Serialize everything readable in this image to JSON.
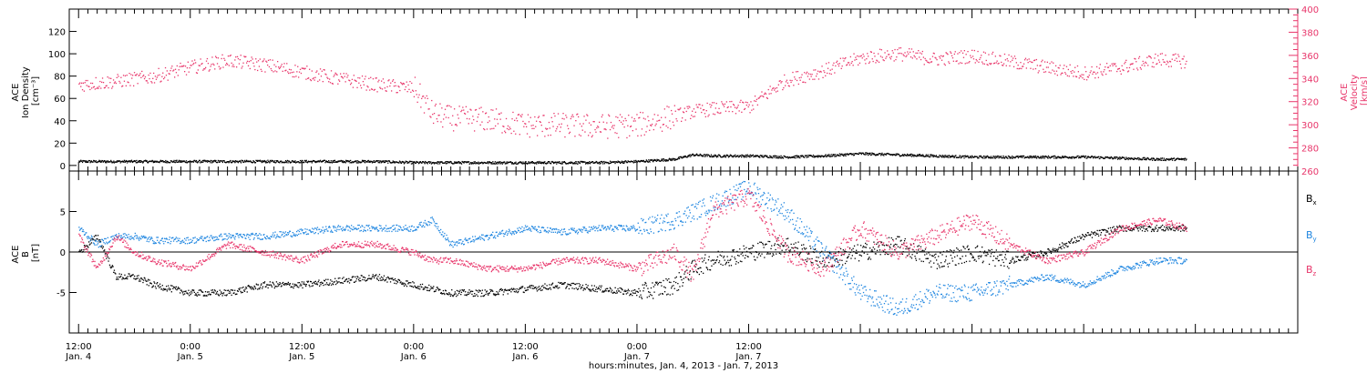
{
  "colors": {
    "density": "#000000",
    "velocity": "#e8356a",
    "bx": "#000000",
    "by": "#1f86e0",
    "bz": "#e8356a",
    "axis": "#000000",
    "background": "#ffffff"
  },
  "chart_data": [
    {
      "type": "scatter",
      "panel": "plasma",
      "x_axis_shared": "time",
      "y_left": {
        "label_lines": [
          "ACE",
          "Ion Density",
          "[cm⁻³]"
        ],
        "ylim": [
          -5,
          140
        ],
        "ticks": [
          0,
          20,
          40,
          60,
          80,
          100,
          120
        ]
      },
      "y_right": {
        "label_lines": [
          "ACE",
          "Velocity",
          "[km/s]"
        ],
        "ylim": [
          260,
          400
        ],
        "ticks": [
          260,
          280,
          300,
          320,
          340,
          360,
          380,
          400
        ]
      },
      "series": [
        {
          "axis": "left",
          "color_key": "density",
          "x_hours": [
            0,
            4,
            8,
            12,
            16,
            20,
            24,
            28,
            32,
            36,
            40,
            44,
            48,
            52,
            56,
            60,
            64,
            66,
            68,
            72,
            76,
            80,
            84,
            88,
            92,
            96,
            100,
            104,
            108,
            112,
            116,
            119
          ],
          "y": [
            4,
            4,
            4,
            4,
            4,
            4,
            4,
            4,
            4,
            3,
            3,
            3,
            3,
            3,
            3,
            4,
            6,
            10,
            9,
            9,
            8,
            9,
            11,
            10,
            9,
            8,
            8,
            8,
            8,
            7,
            6,
            6
          ]
        },
        {
          "axis": "right",
          "color_key": "velocity",
          "x_hours": [
            0,
            4,
            8,
            12,
            16,
            20,
            24,
            28,
            32,
            36,
            38,
            40,
            44,
            48,
            52,
            56,
            60,
            64,
            66,
            68,
            72,
            76,
            80,
            84,
            88,
            92,
            96,
            100,
            104,
            108,
            112,
            116,
            119
          ],
          "y": [
            335,
            338,
            342,
            350,
            356,
            352,
            346,
            340,
            335,
            332,
            310,
            306,
            305,
            300,
            300,
            299,
            300,
            308,
            312,
            314,
            316,
            339,
            347,
            358,
            362,
            357,
            360,
            355,
            350,
            345,
            350,
            357,
            355
          ]
        }
      ]
    },
    {
      "type": "scatter",
      "panel": "magnetic",
      "y_left": {
        "label_lines": [
          "ACE",
          "B",
          "[nT]"
        ],
        "ylim": [
          -10,
          10
        ],
        "ticks": [
          -5,
          0,
          5
        ]
      },
      "legend": [
        "Bₓ",
        "Bᵧ",
        "B_z"
      ],
      "legend_display": [
        [
          "B",
          "x"
        ],
        [
          "B",
          "y"
        ],
        [
          "B",
          "z"
        ]
      ],
      "series": [
        {
          "name_index": 0,
          "color_key": "bx",
          "x_hours": [
            0,
            2,
            4,
            6,
            8,
            12,
            16,
            20,
            24,
            28,
            32,
            36,
            40,
            44,
            48,
            52,
            56,
            60,
            64,
            66,
            68,
            72,
            76,
            80,
            84,
            88,
            92,
            96,
            100,
            104,
            108,
            112,
            116,
            119
          ],
          "y": [
            0,
            2,
            -3,
            -3,
            -4,
            -5,
            -5,
            -4,
            -4,
            -3.5,
            -3,
            -4,
            -5,
            -5,
            -4.5,
            -4,
            -4.5,
            -5,
            -4,
            -2,
            -1,
            0,
            1,
            -1,
            0,
            1,
            -1,
            0,
            -1,
            0,
            2,
            3,
            3,
            3
          ]
        },
        {
          "name_index": 1,
          "color_key": "by",
          "x_hours": [
            0,
            2,
            4,
            6,
            8,
            12,
            16,
            20,
            24,
            28,
            32,
            36,
            38,
            40,
            44,
            48,
            52,
            56,
            60,
            64,
            66,
            68,
            70,
            72,
            76,
            80,
            84,
            88,
            92,
            96,
            100,
            104,
            108,
            112,
            116,
            119
          ],
          "y": [
            3,
            1,
            2,
            2,
            1.5,
            1.5,
            2,
            2,
            2.5,
            3,
            3,
            3,
            4,
            1,
            2,
            3,
            2.5,
            3,
            3,
            4,
            5,
            6,
            7,
            8,
            5,
            0,
            -5,
            -7,
            -5,
            -5,
            -4,
            -3,
            -4,
            -2,
            -1,
            -1
          ]
        },
        {
          "name_index": 2,
          "color_key": "bz",
          "x_hours": [
            0,
            2,
            4,
            6,
            8,
            12,
            16,
            20,
            24,
            28,
            32,
            36,
            38,
            40,
            44,
            48,
            52,
            56,
            60,
            64,
            66,
            68,
            70,
            72,
            76,
            80,
            84,
            88,
            92,
            96,
            100,
            104,
            108,
            112,
            116,
            119
          ],
          "y": [
            2,
            -2,
            2,
            0,
            -1,
            -2,
            1,
            0,
            -1,
            1,
            1,
            0,
            -1,
            -1,
            -2,
            -2,
            -1,
            -1,
            -2,
            0,
            -3,
            5,
            6,
            7,
            0,
            -2,
            3,
            0,
            2,
            4,
            1,
            -1,
            0,
            3,
            4,
            3
          ]
        }
      ],
      "zero_line": true
    }
  ],
  "time_axis": {
    "range_hours": [
      -1,
      131
    ],
    "major_ticks": [
      {
        "h": 0,
        "line1": "12:00",
        "line2": "Jan. 4"
      },
      {
        "h": 12,
        "line1": "0:00",
        "line2": "Jan. 5"
      },
      {
        "h": 24,
        "line1": "12:00",
        "line2": "Jan. 5"
      },
      {
        "h": 36,
        "line1": "0:00",
        "line2": "Jan. 6"
      },
      {
        "h": 48,
        "line1": "12:00",
        "line2": "Jan. 6"
      },
      {
        "h": 60,
        "line1": "0:00",
        "line2": "Jan. 7"
      },
      {
        "h": 72,
        "line1": "12:00",
        "line2": "Jan. 7"
      }
    ],
    "title": "hours:minutes, Jan.  4, 2013 - Jan.  7, 2013"
  }
}
